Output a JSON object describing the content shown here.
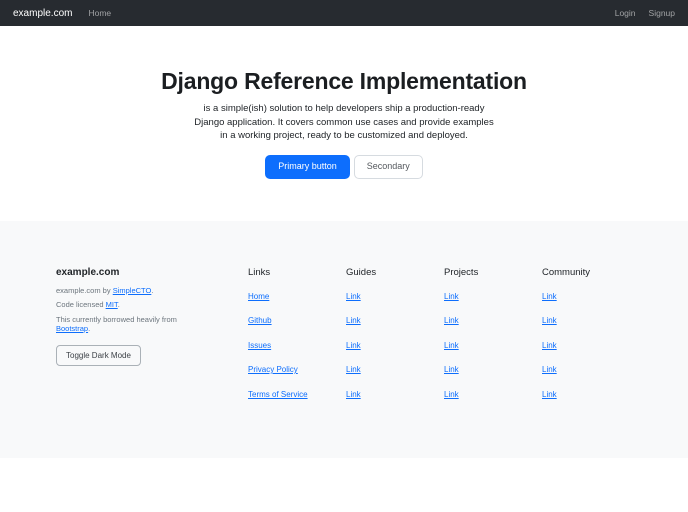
{
  "navbar": {
    "brand": "example.com",
    "home_label": "Home",
    "login_label": "Login",
    "signup_label": "Signup",
    "bg_color": "#272b30"
  },
  "hero": {
    "title": "Django Reference Implementation",
    "subtitle_lines": [
      "is a simple(ish) solution to help developers ship a production-ready",
      "Django application. It covers common use cases and provide examples",
      "in a working project, ready to be customized and deployed."
    ],
    "primary_button_label": "Primary button",
    "secondary_button_label": "Secondary",
    "primary_color": "#0d6efd"
  },
  "footer": {
    "bg_color": "#f8f9fa",
    "link_color": "#0d6efd",
    "brand": {
      "title": "example.com",
      "line1": {
        "prefix": "example.com by ",
        "link": "SimpleCTO",
        "suffix": "."
      },
      "line2": {
        "prefix": "Code licensed ",
        "link": "MIT",
        "suffix": "."
      },
      "line3": {
        "prefix": "This currently borrowed heavily from ",
        "link": "Bootstrap",
        "suffix": "."
      },
      "toggle_button_label": "Toggle Dark Mode"
    },
    "columns": [
      {
        "heading": "Links",
        "links": [
          "Home",
          "Github",
          "Issues",
          "Privacy Policy",
          "Terms of Service"
        ]
      },
      {
        "heading": "Guides",
        "links": [
          "Link",
          "Link",
          "Link",
          "Link",
          "Link"
        ]
      },
      {
        "heading": "Projects",
        "links": [
          "Link",
          "Link",
          "Link",
          "Link",
          "Link"
        ]
      },
      {
        "heading": "Community",
        "links": [
          "Link",
          "Link",
          "Link",
          "Link",
          "Link"
        ]
      }
    ]
  }
}
